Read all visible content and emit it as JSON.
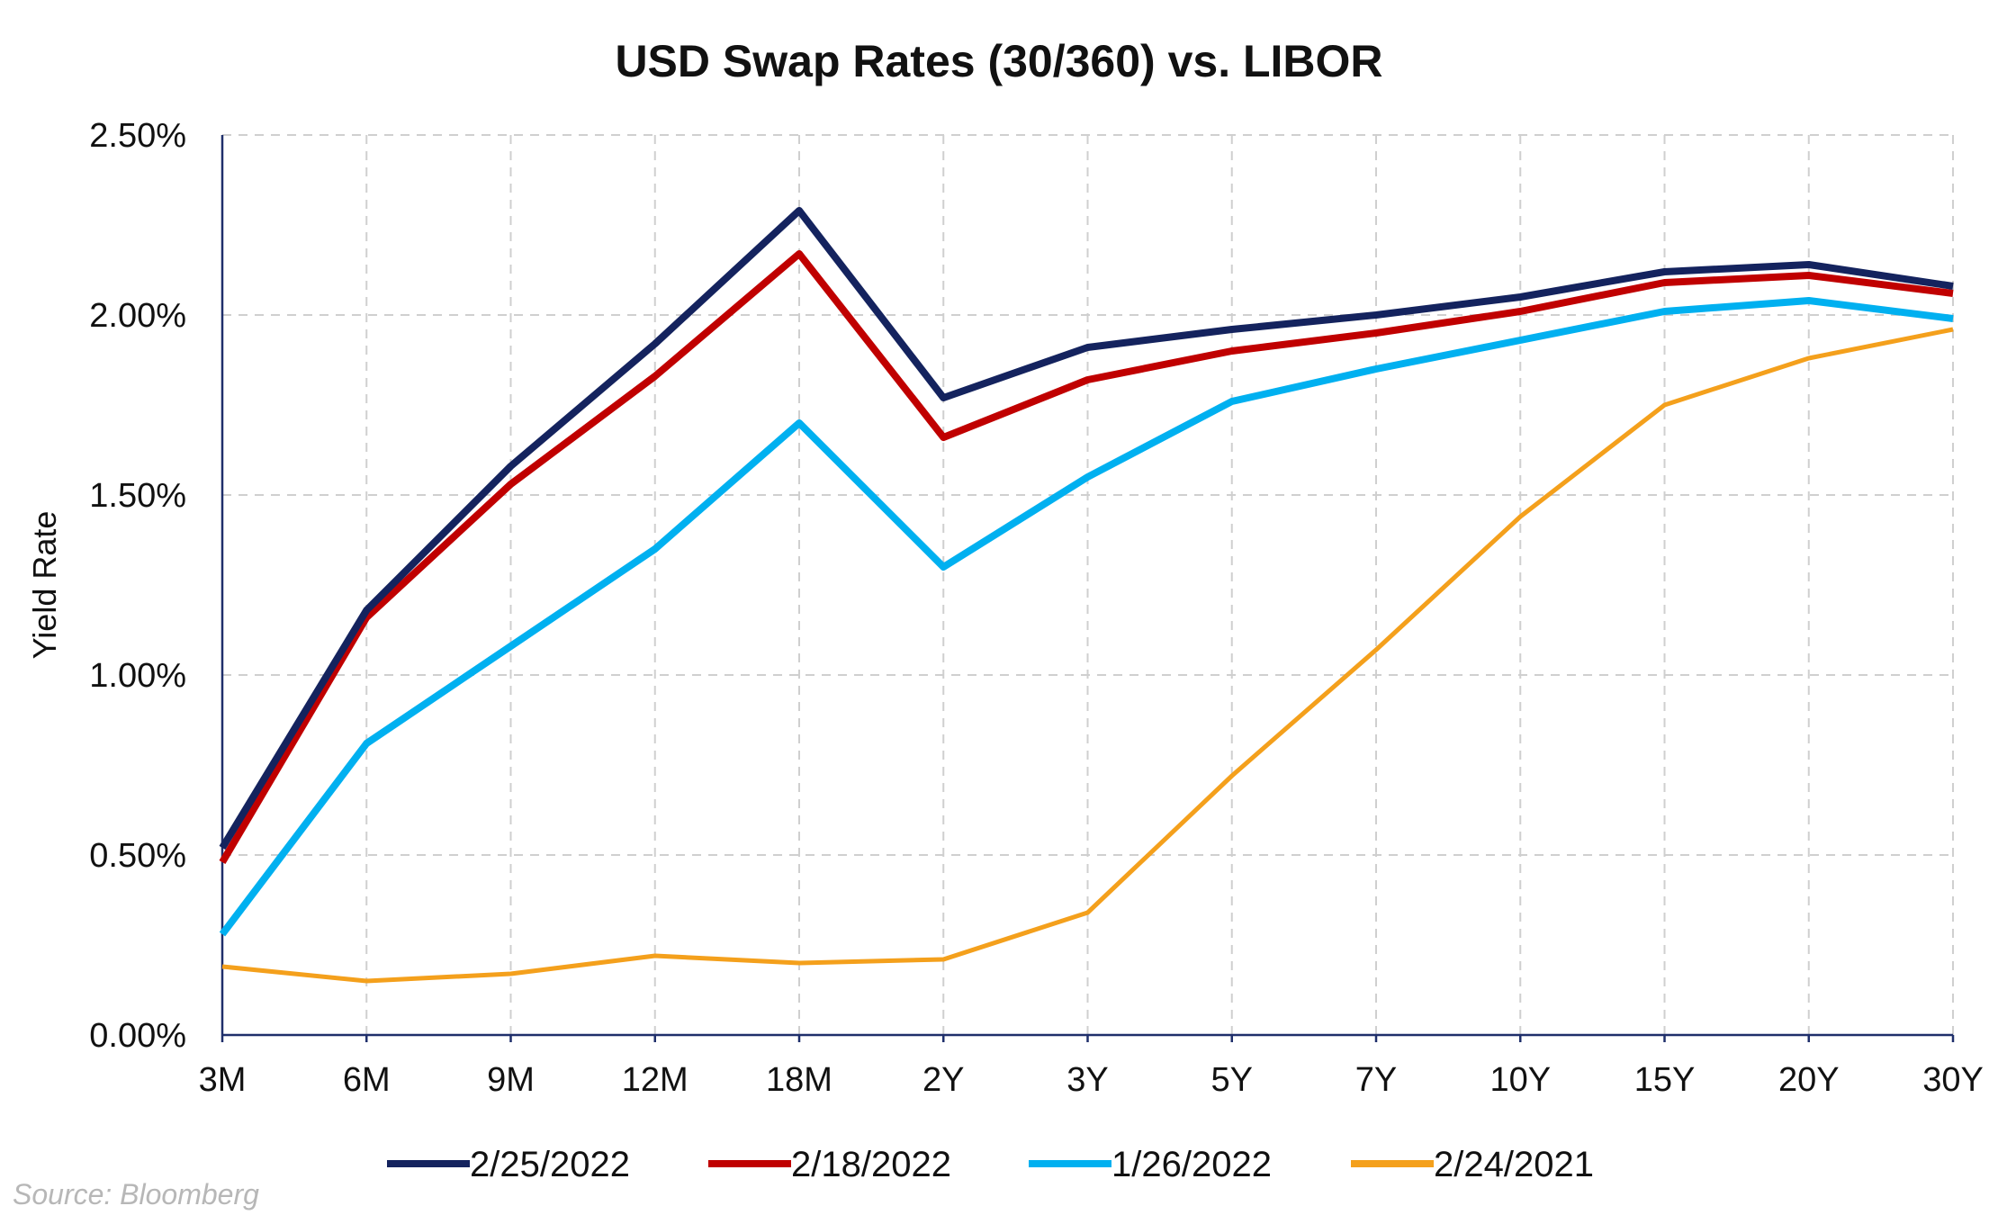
{
  "chart_data": {
    "type": "line",
    "title": "USD Swap Rates (30/360) vs. LIBOR",
    "xlabel": "",
    "ylabel": "Yield Rate",
    "categories": [
      "3M",
      "6M",
      "9M",
      "12M",
      "18M",
      "2Y",
      "3Y",
      "5Y",
      "7Y",
      "10Y",
      "15Y",
      "20Y",
      "30Y"
    ],
    "ylim": [
      0,
      2.5
    ],
    "yticks": [
      0,
      0.5,
      1.0,
      1.5,
      2.0,
      2.5
    ],
    "ytick_labels": [
      "0.00%",
      "0.50%",
      "1.00%",
      "1.50%",
      "2.00%",
      "2.50%"
    ],
    "grid": true,
    "legend_position": "bottom",
    "series": [
      {
        "name": "2/25/2022",
        "color": "#14235e",
        "width": 8,
        "values": [
          0.52,
          1.18,
          1.58,
          1.92,
          2.29,
          1.77,
          1.91,
          1.96,
          2.0,
          2.05,
          2.12,
          2.14,
          2.08
        ]
      },
      {
        "name": "2/18/2022",
        "color": "#c00000",
        "width": 8,
        "values": [
          0.48,
          1.16,
          1.53,
          1.83,
          2.17,
          1.66,
          1.82,
          1.9,
          1.95,
          2.01,
          2.09,
          2.11,
          2.06
        ]
      },
      {
        "name": "1/26/2022",
        "color": "#00b0f0",
        "width": 8,
        "values": [
          0.28,
          0.81,
          1.08,
          1.35,
          1.7,
          1.3,
          1.55,
          1.76,
          1.85,
          1.93,
          2.01,
          2.04,
          1.99
        ]
      },
      {
        "name": "2/24/2021",
        "color": "#f4a01c",
        "width": 5,
        "values": [
          0.19,
          0.15,
          0.17,
          0.22,
          0.2,
          0.21,
          0.34,
          0.72,
          1.07,
          1.44,
          1.75,
          1.88,
          1.96
        ]
      }
    ]
  },
  "source": "Source: Bloomberg"
}
